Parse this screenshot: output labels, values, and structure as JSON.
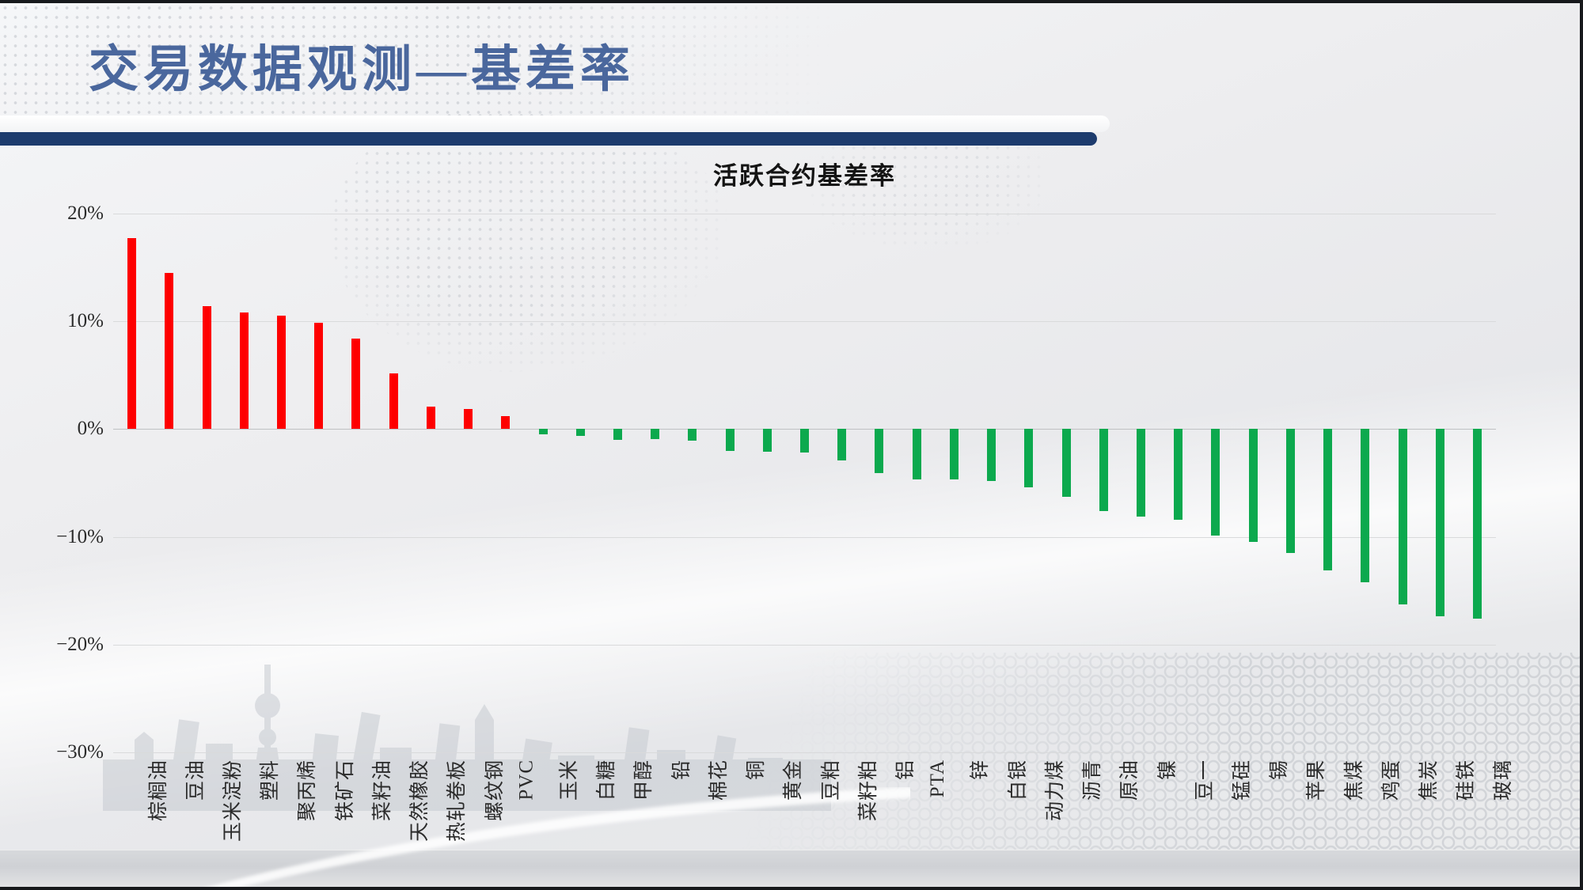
{
  "slide": {
    "title": "交易数据观测—基差率",
    "title_color": "#4a679d",
    "divider_color": "#1d3b6d"
  },
  "chart_data": {
    "type": "bar",
    "title": "活跃合约基差率",
    "categories": [
      "棕榈油",
      "豆油",
      "玉米淀粉",
      "塑料",
      "聚丙烯",
      "铁矿石",
      "菜籽油",
      "天然橡胶",
      "热轧卷板",
      "螺纹钢",
      "PVC",
      "玉米",
      "白糖",
      "甲醇",
      "铅",
      "棉花",
      "铜",
      "黄金",
      "豆粕",
      "菜籽粕",
      "铝",
      "PTA",
      "锌",
      "白银",
      "动力煤",
      "沥青",
      "原油",
      "镍",
      "豆一",
      "锰硅",
      "锡",
      "苹果",
      "焦煤",
      "鸡蛋",
      "焦炭",
      "硅铁",
      "玻璃"
    ],
    "values": [
      17.7,
      14.5,
      11.4,
      10.8,
      10.5,
      9.9,
      8.4,
      5.2,
      2.1,
      1.9,
      1.2,
      -0.5,
      -0.6,
      -1.0,
      -0.9,
      -1.1,
      -2.0,
      -2.1,
      -2.2,
      -2.9,
      -4.1,
      -4.7,
      -4.7,
      -4.8,
      -5.4,
      -6.3,
      -7.6,
      -8.1,
      -8.4,
      -9.9,
      -10.5,
      -11.5,
      -13.1,
      -14.2,
      -16.3,
      -17.4,
      -17.6
    ],
    "unit": "%",
    "ylim": [
      -30,
      20
    ],
    "yticks": [
      20,
      10,
      0,
      -10,
      -20,
      -30
    ],
    "ytick_labels": [
      "20%",
      "10%",
      "0%",
      "−10%",
      "−20%",
      "−30%"
    ],
    "positive_color": "#fe0000",
    "negative_color": "#0ca94e",
    "grid": true,
    "legend": "none",
    "xlabel": "",
    "ylabel": ""
  }
}
